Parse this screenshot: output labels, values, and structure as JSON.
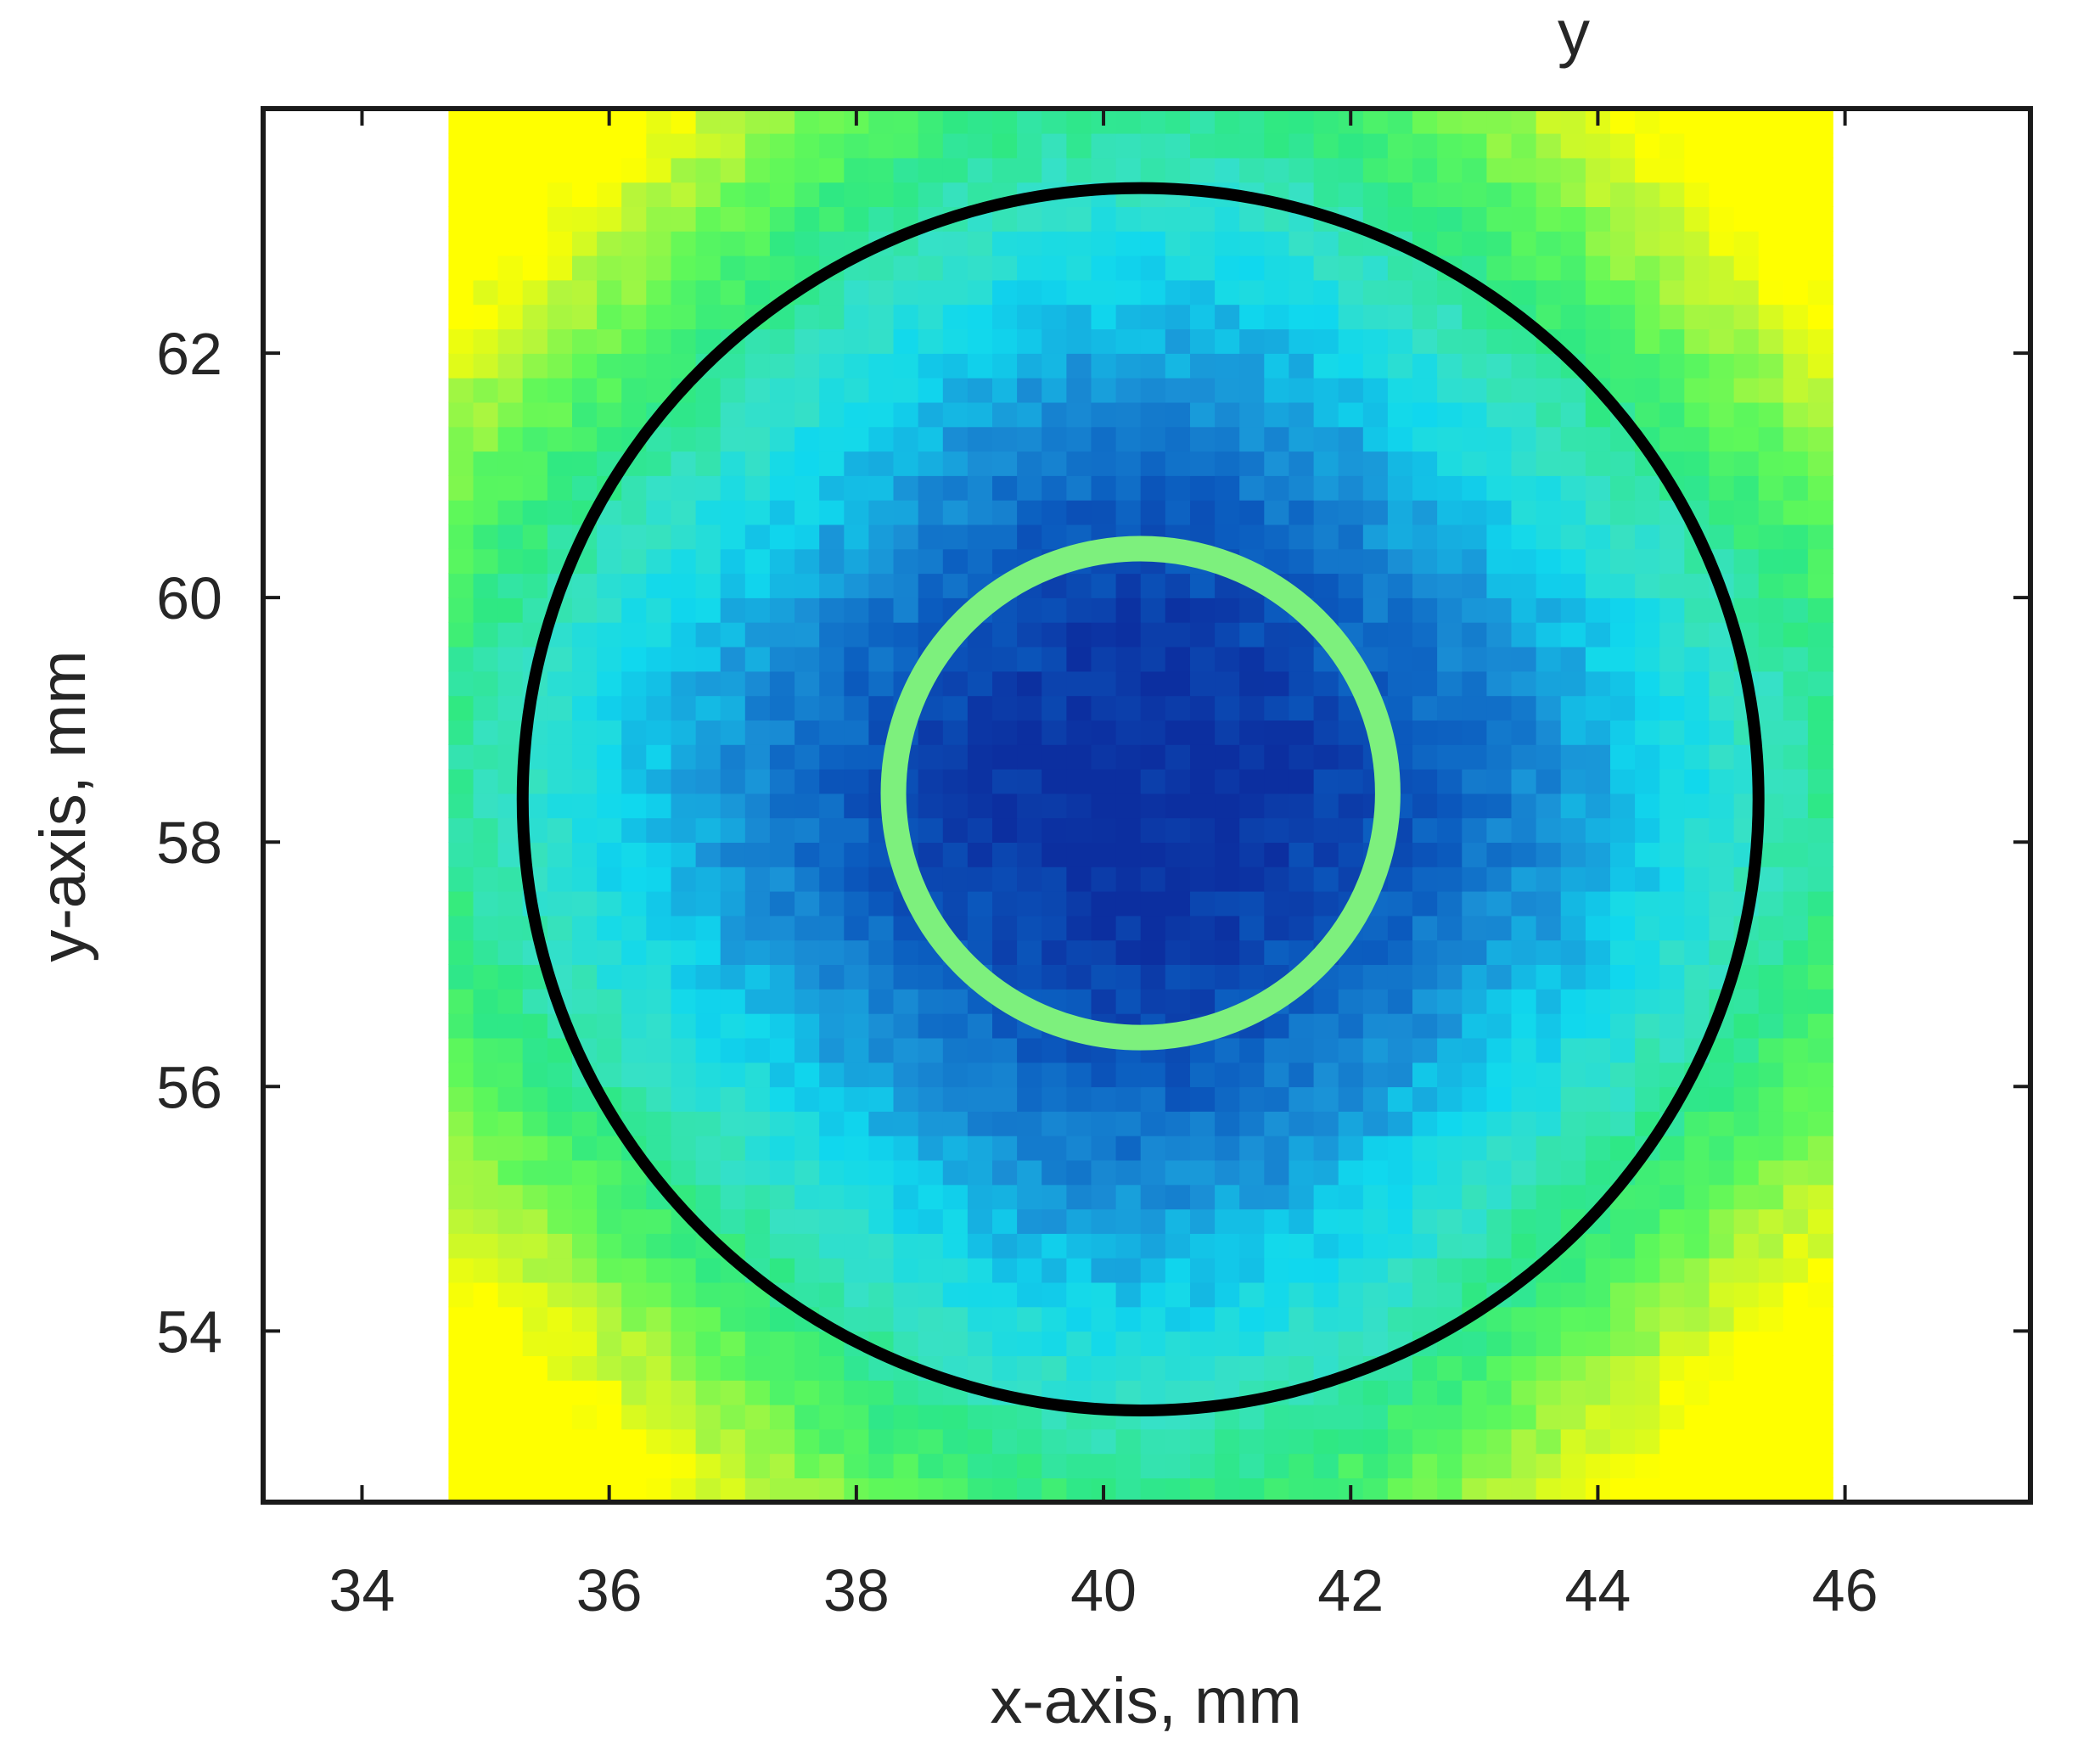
{
  "chart_data": {
    "type": "heatmap",
    "title_fragment": "y",
    "xlabel": "x-axis, mm",
    "ylabel": "y-axis, mm",
    "xlim": [
      33.2,
      47.5
    ],
    "ylim": [
      52.6,
      64.0
    ],
    "x_ticks": [
      34,
      36,
      38,
      40,
      42,
      44,
      46
    ],
    "y_ticks": [
      54,
      56,
      58,
      60,
      62
    ],
    "x_tick_labels": [
      "34",
      "36",
      "38",
      "40",
      "42",
      "44",
      "46"
    ],
    "y_tick_labels": [
      "54",
      "56",
      "58",
      "60",
      "62"
    ],
    "heatmap": {
      "x_range": [
        34.7,
        45.9
      ],
      "y_range": [
        52.6,
        64.0
      ],
      "cells_x": 56,
      "cells_y": 57,
      "center": [
        40.3,
        58.4
      ],
      "colormap": [
        "#0c2fa0",
        "#0b5cbf",
        "#1a90d6",
        "#10d8ee",
        "#37e1c5",
        "#2ee884",
        "#5ef85a",
        "#b4f63c",
        "#ffff00"
      ],
      "colormap_name": "winter-to-yellow"
    },
    "overlays": [
      {
        "name": "outer-circle",
        "shape": "circle",
        "center": [
          40.3,
          58.35
        ],
        "radius": 5.0,
        "color": "#000000"
      },
      {
        "name": "inner-circle",
        "shape": "circle",
        "center": [
          40.3,
          58.4
        ],
        "radius": 2.0,
        "color": "#7df07d"
      }
    ],
    "grid": false
  }
}
